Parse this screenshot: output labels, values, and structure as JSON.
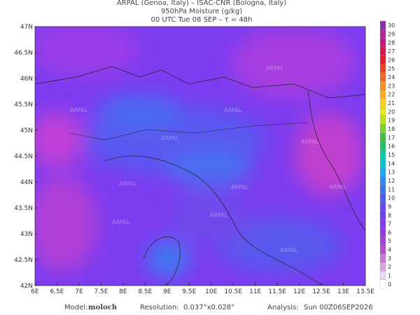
{
  "header": {
    "line1": "ARPAL (Genoa, Italy)  –  ISAC-CNR (Bologna, Italy)",
    "line2": "950hPa Moisture (g/kg)",
    "line3": "00 UTC Tue 08 SEP  –  τ = 48h"
  },
  "axes": {
    "lon_labels": [
      "6E",
      "6.5E",
      "7E",
      "7.5E",
      "8E",
      "8.5E",
      "9E",
      "9.5E",
      "10E",
      "10.5E",
      "11E",
      "11.5E",
      "12E",
      "12.5E",
      "13E",
      "13.5E"
    ],
    "lat_labels": [
      "47N",
      "46.5N",
      "46N",
      "45.5N",
      "45N",
      "44.5N",
      "44N",
      "43.5N",
      "43N",
      "42.5N",
      "42N"
    ]
  },
  "watermark": "ARPAL",
  "colorbar": {
    "ticks": [
      0,
      1,
      2,
      3,
      4,
      5,
      6,
      7,
      8,
      9,
      10,
      11,
      12,
      13,
      14,
      15,
      16,
      17,
      18,
      19,
      20,
      21,
      22,
      23,
      24,
      25,
      26,
      27,
      28,
      29,
      30
    ],
    "colors": [
      "#ffffff",
      "#e8d8f0",
      "#d9a8e0",
      "#c27ad6",
      "#b050d0",
      "#a040d8",
      "#9038e0",
      "#8038e8",
      "#7040ea",
      "#6048ee",
      "#4a5af0",
      "#3a70f0",
      "#2f88f0",
      "#20a8e8",
      "#10c0d0",
      "#10c8a8",
      "#20c070",
      "#40c040",
      "#80d030",
      "#b8e020",
      "#e8e820",
      "#f8d020",
      "#f8b020",
      "#f89020",
      "#f06820",
      "#e84020",
      "#e02030",
      "#d81850",
      "#c81878",
      "#b02898",
      "#8830a8"
    ]
  },
  "footer": {
    "model_label": "Model:",
    "model": "moloch",
    "res_label": "Resolution:",
    "res": "0.037°x0.028°",
    "an_label": "Analysis:",
    "an": "Sun 00Z06SEP2026"
  }
}
